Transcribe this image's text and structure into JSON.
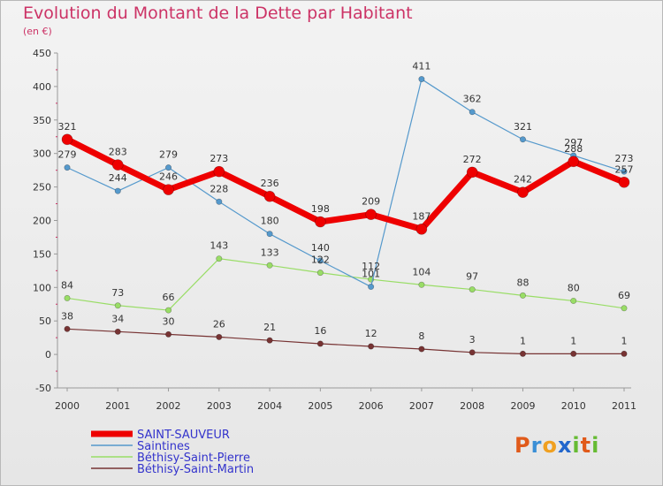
{
  "title": "Evolution du Montant de la Dette par Habitant",
  "subtitle": "(en €)",
  "logo": {
    "text": "Proxiti",
    "letters": [
      "P",
      "r",
      "o",
      "x",
      "i",
      "t",
      "i"
    ],
    "colors": [
      "#e05a1a",
      "#3a8fd6",
      "#f0a020",
      "#2266cc",
      "#66bb33",
      "#e05a1a",
      "#66bb33"
    ]
  },
  "chart_data": {
    "type": "line",
    "title": "Evolution du Montant de la Dette par Habitant",
    "ylabel": "(en €)",
    "xlabel": "",
    "categories": [
      "2000",
      "2001",
      "2002",
      "2003",
      "2004",
      "2005",
      "2006",
      "2007",
      "2008",
      "2009",
      "2010",
      "2011"
    ],
    "ylim": [
      -50,
      450
    ],
    "yticks": [
      -50,
      0,
      50,
      100,
      150,
      200,
      250,
      300,
      350,
      400,
      450
    ],
    "ytick_labels": [
      "-50",
      "0",
      "50",
      "100",
      "150",
      "200",
      "250",
      "300",
      "350",
      "400",
      "450"
    ],
    "grid": false,
    "legend_position": "bottom-left",
    "series": [
      {
        "name": "SAINT-SAUVEUR",
        "color": "#ee0000",
        "width": 7,
        "radius": 6,
        "values": [
          321,
          283,
          246,
          273,
          236,
          198,
          209,
          187,
          272,
          242,
          288,
          257
        ],
        "labels": [
          "321",
          "283",
          "246",
          "273",
          "236",
          "198",
          "209",
          "187",
          "272",
          "242",
          "288",
          "257"
        ]
      },
      {
        "name": "Saintines",
        "color": "#5599cc",
        "width": 1.2,
        "radius": 3.2,
        "values": [
          279,
          244,
          279,
          228,
          180,
          140,
          101,
          411,
          362,
          321,
          297,
          273
        ],
        "labels": [
          "279",
          "244",
          "279",
          "228",
          "180",
          "140",
          "101",
          "411",
          "362",
          "321",
          "297",
          "273"
        ]
      },
      {
        "name": "Béthisy-Saint-Pierre",
        "color": "#99dd66",
        "width": 1.2,
        "radius": 3.2,
        "values": [
          84,
          73,
          66,
          143,
          133,
          122,
          112,
          104,
          97,
          88,
          80,
          69
        ],
        "labels": [
          "84",
          "73",
          "66",
          "143",
          "133",
          "122",
          "112",
          "104",
          "97",
          "88",
          "80",
          "69"
        ]
      },
      {
        "name": "Béthisy-Saint-Martin",
        "color": "#773333",
        "width": 1.2,
        "radius": 3.2,
        "values": [
          38,
          34,
          30,
          26,
          21,
          16,
          12,
          8,
          3,
          1,
          1,
          1
        ],
        "labels": [
          "38",
          "34",
          "30",
          "26",
          "21",
          "16",
          "12",
          "8",
          "3",
          "1",
          "1",
          "1"
        ]
      }
    ]
  }
}
